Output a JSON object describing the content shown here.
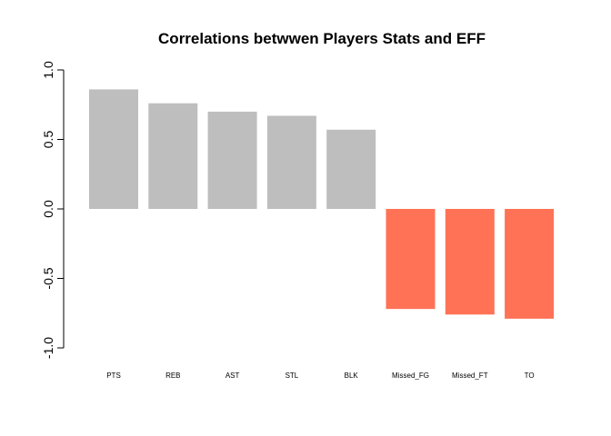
{
  "chart_data": {
    "type": "bar",
    "title": "Correlations betwwen Players Stats and EFF",
    "xlabel": "",
    "ylabel": "",
    "ylim": [
      -1.0,
      1.0
    ],
    "yticks": [
      -1.0,
      -0.5,
      0.0,
      0.5,
      1.0
    ],
    "ytick_labels": [
      "-1.0",
      "-0.5",
      "0.0",
      "0.5",
      "1.0"
    ],
    "categories": [
      "PTS",
      "REB",
      "AST",
      "STL",
      "BLK",
      "Missed_FG",
      "Missed_FT",
      "TO"
    ],
    "values": [
      0.86,
      0.76,
      0.7,
      0.67,
      0.57,
      -0.72,
      -0.76,
      -0.79
    ],
    "positive_color": "#bebebe",
    "negative_color": "#ff7256",
    "grid": false,
    "legend": "none"
  }
}
